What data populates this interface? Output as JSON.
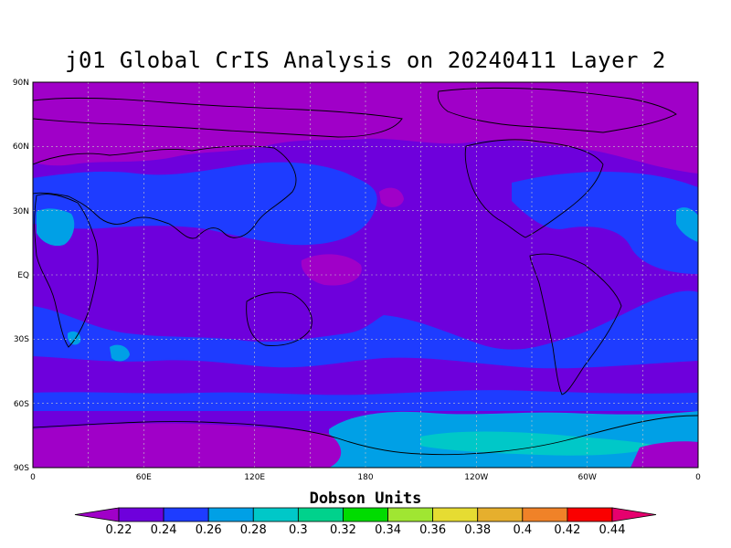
{
  "title": "j01 Global CrIS Analysis on 20240411 Layer 2",
  "colorbar": {
    "label": "Dobson Units",
    "levels": [
      "0.22",
      "0.24",
      "0.26",
      "0.28",
      "0.3",
      "0.32",
      "0.34",
      "0.36",
      "0.38",
      "0.4",
      "0.42",
      "0.44"
    ],
    "colors": [
      "#a000c8",
      "#6e00dc",
      "#1e3cff",
      "#00a0e6",
      "#00c8c8",
      "#00d28c",
      "#00dc00",
      "#a0e632",
      "#e6dc32",
      "#e6af2d",
      "#f08228",
      "#fa0000",
      "#e6006e"
    ]
  },
  "axes": {
    "lat_labels": [
      "90N",
      "60N",
      "30N",
      "EQ",
      "30S",
      "60S",
      "90S"
    ],
    "lon_labels": [
      "0",
      "60E",
      "120E",
      "180",
      "120W",
      "60W",
      "0"
    ]
  },
  "map": {
    "projection": "equirectangular",
    "lon_range": [
      0,
      360
    ],
    "lat_range": [
      -90,
      90
    ],
    "grid_spacing_deg": 30,
    "background_level": "0.22-0.24",
    "regions": [
      {
        "name": "antarctic-ocean-band",
        "level": "0.26-0.28"
      },
      {
        "name": "south-pacific-band",
        "level": "0.24-0.26"
      },
      {
        "name": "north-africa-high",
        "level": "0.26-0.28"
      },
      {
        "name": "tropical-pacific-low",
        "level": "0.22"
      },
      {
        "name": "antarctica-low",
        "level": "0.22"
      },
      {
        "name": "arctic-low",
        "level": "0.22"
      }
    ]
  }
}
